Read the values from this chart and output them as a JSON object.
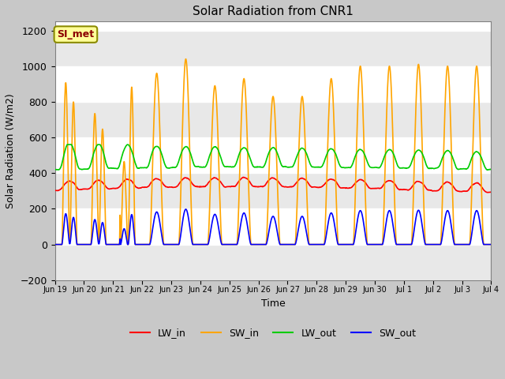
{
  "title": "Solar Radiation from CNR1",
  "xlabel": "Time",
  "ylabel": "Solar Radiation (W/m2)",
  "ylim": [
    -200,
    1250
  ],
  "yticks": [
    -200,
    0,
    200,
    400,
    600,
    800,
    1000,
    1200
  ],
  "annotation_text": "SI_met",
  "annotation_color": "#8B0000",
  "annotation_bg": "#FFFF99",
  "annotation_edge": "#8B8B00",
  "fig_bg": "#C8C8C8",
  "plot_bg": "#FFFFFF",
  "grid_color": "#E0E0E0",
  "series_colors": {
    "LW_in": "#FF0000",
    "SW_in": "#FFA500",
    "LW_out": "#00CC00",
    "SW_out": "#0000FF"
  },
  "x_tick_labels": [
    "Jun 19",
    "Jun 20",
    "Jun 21",
    "Jun 22",
    "Jun 23",
    "Jun 24",
    "Jun 25",
    "Jun 26",
    "Jun 27",
    "Jun 28",
    "Jun 29",
    "Jun 30",
    "Jul 1",
    "Jul 2",
    "Jul 3",
    "Jul 4"
  ],
  "n_days": 15,
  "ppd": 288,
  "sw_in_peaks": [
    1050,
    850,
    1000,
    960,
    1040,
    890,
    930,
    830,
    830,
    930,
    1000,
    1000,
    1010,
    1000,
    1000
  ],
  "sw_in_cloudy_days": [
    1,
    2
  ],
  "sw_out_scale": 0.19,
  "lw_in_mean": 305,
  "lw_out_mean": 420
}
